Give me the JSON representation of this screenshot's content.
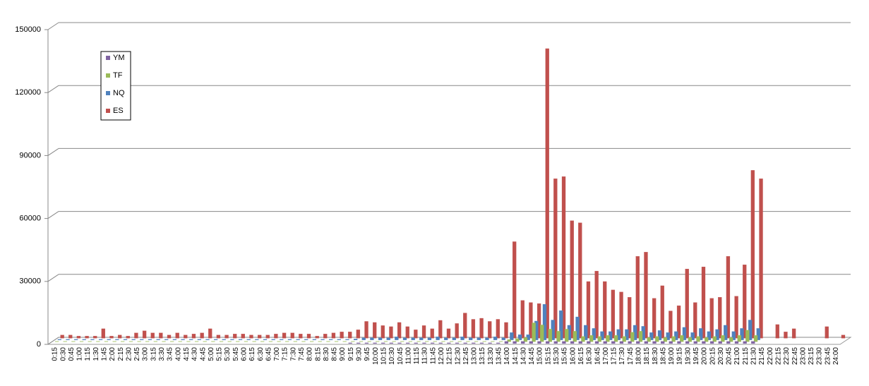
{
  "chart_data": {
    "type": "bar",
    "categories": [
      "0:15",
      "0:30",
      "0:45",
      "1:00",
      "1:15",
      "1:30",
      "1:45",
      "2:00",
      "2:15",
      "2:30",
      "2:45",
      "3:00",
      "3:15",
      "3:30",
      "3:45",
      "4:00",
      "4:15",
      "4:30",
      "4:45",
      "5:00",
      "5:15",
      "5:30",
      "5:45",
      "6:00",
      "6:15",
      "6:30",
      "6:45",
      "7:00",
      "7:15",
      "7:30",
      "7:45",
      "8:00",
      "8:15",
      "8:30",
      "8:45",
      "9:00",
      "9:15",
      "9:30",
      "9:45",
      "10:00",
      "10:15",
      "10:30",
      "10:45",
      "11:00",
      "11:15",
      "11:30",
      "11:45",
      "12:00",
      "12:15",
      "12:30",
      "12:45",
      "13:00",
      "13:15",
      "13:30",
      "13:45",
      "14:00",
      "14:15",
      "14:30",
      "14:45",
      "15:00",
      "15:15",
      "15:30",
      "15:45",
      "16:00",
      "16:15",
      "16:30",
      "16:45",
      "17:00",
      "17:15",
      "17:30",
      "17:45",
      "18:00",
      "18:15",
      "18:30",
      "18:45",
      "19:00",
      "19:15",
      "19:30",
      "19:45",
      "20:00",
      "20:15",
      "20:30",
      "20:45",
      "21:00",
      "21:15",
      "21:30",
      "21:45",
      "22:00",
      "22:15",
      "22:30",
      "22:45",
      "23:00",
      "23:15",
      "23:30",
      "23:45",
      "24:00"
    ],
    "series": [
      {
        "name": "YM",
        "color": "#8064a2",
        "values": [
          0,
          0,
          0,
          0,
          0,
          0,
          0,
          0,
          0,
          0,
          0,
          0,
          0,
          0,
          0,
          0,
          0,
          0,
          0,
          0,
          0,
          0,
          0,
          0,
          0,
          0,
          0,
          0,
          0,
          0,
          0,
          0,
          0,
          0,
          0,
          0,
          300,
          300,
          300,
          300,
          300,
          300,
          300,
          300,
          300,
          300,
          300,
          300,
          300,
          300,
          300,
          300,
          300,
          300,
          300,
          1000,
          1000,
          1000,
          1000,
          1000,
          1000,
          1000,
          1000,
          1000,
          1000,
          1000,
          1000,
          1000,
          1000,
          1000,
          1000,
          1000,
          1000,
          1000,
          1000,
          1000,
          1000,
          1000,
          1000,
          1000,
          1000,
          1000,
          1000,
          1000,
          1000,
          1000,
          0,
          0,
          0,
          0,
          0,
          0,
          0,
          0,
          0,
          0
        ]
      },
      {
        "name": "TF",
        "color": "#9bbb59",
        "values": [
          200,
          200,
          200,
          200,
          200,
          200,
          200,
          200,
          200,
          200,
          200,
          200,
          200,
          200,
          200,
          200,
          200,
          200,
          200,
          200,
          200,
          200,
          200,
          200,
          200,
          200,
          200,
          200,
          200,
          200,
          200,
          200,
          200,
          200,
          200,
          200,
          200,
          200,
          200,
          200,
          200,
          200,
          200,
          200,
          200,
          200,
          200,
          200,
          200,
          200,
          200,
          200,
          200,
          200,
          200,
          1000,
          1500,
          2000,
          9000,
          8000,
          6000,
          5000,
          6000,
          5000,
          2500,
          3000,
          2500,
          3000,
          3000,
          2500,
          4500,
          5000,
          2000,
          2500,
          2000,
          2500,
          3000,
          2000,
          2500,
          2000,
          2500,
          3000,
          2000,
          3000,
          5500,
          3000,
          0,
          0,
          0,
          0,
          0,
          0,
          0,
          0,
          0,
          0
        ]
      },
      {
        "name": "NQ",
        "color": "#4f81bd",
        "values": [
          300,
          300,
          300,
          300,
          300,
          300,
          300,
          300,
          300,
          300,
          300,
          300,
          300,
          300,
          300,
          300,
          300,
          300,
          300,
          300,
          300,
          300,
          300,
          300,
          300,
          300,
          300,
          300,
          300,
          300,
          300,
          300,
          300,
          300,
          300,
          300,
          500,
          1000,
          1000,
          1000,
          1000,
          1500,
          1000,
          1000,
          1000,
          1000,
          1500,
          1000,
          1000,
          1500,
          1000,
          1000,
          1000,
          1500,
          1000,
          3500,
          2500,
          2500,
          9000,
          17000,
          9500,
          14000,
          7000,
          11000,
          7000,
          5500,
          4000,
          4000,
          5000,
          5000,
          7000,
          6500,
          3500,
          4500,
          3500,
          4000,
          6000,
          3500,
          5500,
          4000,
          5000,
          7000,
          4000,
          5500,
          9500,
          5500,
          0,
          0,
          0,
          0,
          0,
          0,
          0,
          0,
          0,
          0
        ]
      },
      {
        "name": "ES",
        "color": "#c0504d",
        "values": [
          1500,
          1500,
          1000,
          1000,
          1000,
          4500,
          1000,
          1500,
          1000,
          2500,
          3500,
          2500,
          2500,
          1500,
          2500,
          1500,
          2000,
          2500,
          4500,
          1500,
          1500,
          2000,
          2000,
          1500,
          1500,
          1500,
          2000,
          2500,
          2500,
          2000,
          2000,
          1000,
          2000,
          2500,
          3000,
          3000,
          4000,
          8000,
          7500,
          6000,
          5500,
          7500,
          5500,
          4000,
          6000,
          4500,
          8500,
          4500,
          7000,
          12000,
          9000,
          9500,
          8000,
          9000,
          7500,
          46000,
          18000,
          17000,
          16500,
          138000,
          76000,
          77000,
          56000,
          55000,
          27000,
          32000,
          27000,
          23000,
          22000,
          19500,
          39000,
          41000,
          19000,
          25000,
          13000,
          15500,
          33000,
          17000,
          34000,
          19000,
          19500,
          39000,
          20000,
          35000,
          80000,
          76000,
          0,
          6500,
          3000,
          4500,
          0,
          0,
          0,
          5500,
          0,
          1500
        ]
      }
    ],
    "ylim": [
      0,
      150000
    ],
    "yticks": [
      0,
      30000,
      60000,
      90000,
      120000,
      150000
    ],
    "grid": true,
    "legend": "upper-left"
  }
}
